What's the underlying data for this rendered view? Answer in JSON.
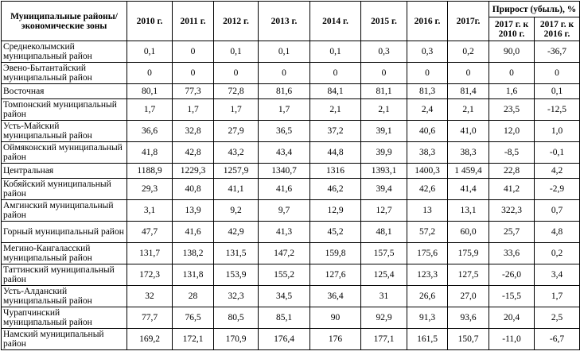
{
  "header": {
    "name_col": "Муниципальные районы/экономические зоны",
    "years": [
      "2010 г.",
      "2011 г.",
      "2012 г.",
      "2013 г.",
      "2014 г.",
      "2015 г.",
      "2016 г.",
      "2017г."
    ],
    "growth_title": "Прирост (убыль), %",
    "growth_cols": [
      "2017 г. к 2010 г.",
      "2017 г. к 2016 г."
    ]
  },
  "rows": [
    {
      "name": "Среднеколымский муниципальный район",
      "values": [
        "0,1",
        "0",
        "0,1",
        "0,1",
        "0,1",
        "0,3",
        "0,3",
        "0,2",
        "90,0",
        "-36,7"
      ]
    },
    {
      "name": "Эвено-Бытантайский муниципальный район",
      "values": [
        "0",
        "0",
        "0",
        "0",
        "0",
        "0",
        "0",
        "0",
        "0",
        "0"
      ]
    },
    {
      "name": "Восточная",
      "values": [
        "80,1",
        "77,3",
        "72,8",
        "81,6",
        "84,1",
        "81,1",
        "81,3",
        "81,4",
        "1,6",
        "0,1"
      ]
    },
    {
      "name": "Томпонский муниципальный район",
      "values": [
        "1,7",
        "1,7",
        "1,7",
        "1,7",
        "2,1",
        "2,1",
        "2,4",
        "2,1",
        "23,5",
        "-12,5"
      ]
    },
    {
      "name": "Усть-Майский муниципальный район",
      "values": [
        "36,6",
        "32,8",
        "27,9",
        "36,5",
        "37,2",
        "39,1",
        "40,6",
        "41,0",
        "12,0",
        "1,0"
      ]
    },
    {
      "name": "Оймяконский муниципальный район",
      "values": [
        "41,8",
        "42,8",
        "43,2",
        "43,4",
        "44,8",
        "39,9",
        "38,3",
        "38,3",
        "-8,5",
        "-0,1"
      ]
    },
    {
      "name": "Центральная",
      "values": [
        "1188,9",
        "1229,3",
        "1257,9",
        "1340,7",
        "1316",
        "1393,1",
        "1400,3",
        "1 459,4",
        "22,8",
        "4,2"
      ]
    },
    {
      "name": "Кобяйский муниципальный район",
      "values": [
        "29,3",
        "40,8",
        "41,1",
        "41,6",
        "46,2",
        "39,4",
        "42,6",
        "41,4",
        "41,2",
        "-2,9"
      ]
    },
    {
      "name": "Амгинский муниципальный район",
      "values": [
        "3,1",
        "13,9",
        "9,2",
        "9,7",
        "12,9",
        "12,7",
        "13",
        "13,1",
        "322,3",
        "0,7"
      ]
    },
    {
      "name": "Горный муниципальный район",
      "values": [
        "47,7",
        "41,6",
        "42,9",
        "41,3",
        "45,2",
        "48,1",
        "57,2",
        "60,0",
        "25,7",
        "4,8"
      ]
    },
    {
      "name": "Мегино-Кангаласский муниципальный район",
      "values": [
        "131,7",
        "138,2",
        "131,5",
        "147,2",
        "159,8",
        "157,5",
        "175,6",
        "175,9",
        "33,6",
        "0,2"
      ]
    },
    {
      "name": "Таттинский муниципальный район",
      "values": [
        "172,3",
        "131,8",
        "153,9",
        "155,2",
        "127,6",
        "125,4",
        "123,3",
        "127,5",
        "-26,0",
        "3,4"
      ]
    },
    {
      "name": "Усть-Алданский муниципальный район",
      "values": [
        "32",
        "28",
        "32,3",
        "34,5",
        "36,4",
        "31",
        "26,6",
        "27,0",
        "-15,5",
        "1,7"
      ]
    },
    {
      "name": "Чурапчинский муниципальный район",
      "values": [
        "77,7",
        "76,5",
        "80,5",
        "85,1",
        "90",
        "92,9",
        "91,3",
        "93,6",
        "20,4",
        "2,5"
      ]
    },
    {
      "name": "Намский муниципальный район",
      "values": [
        "169,2",
        "172,1",
        "170,9",
        "176,4",
        "176",
        "177,1",
        "161,5",
        "150,7",
        "-11,0",
        "-6,7"
      ]
    }
  ]
}
